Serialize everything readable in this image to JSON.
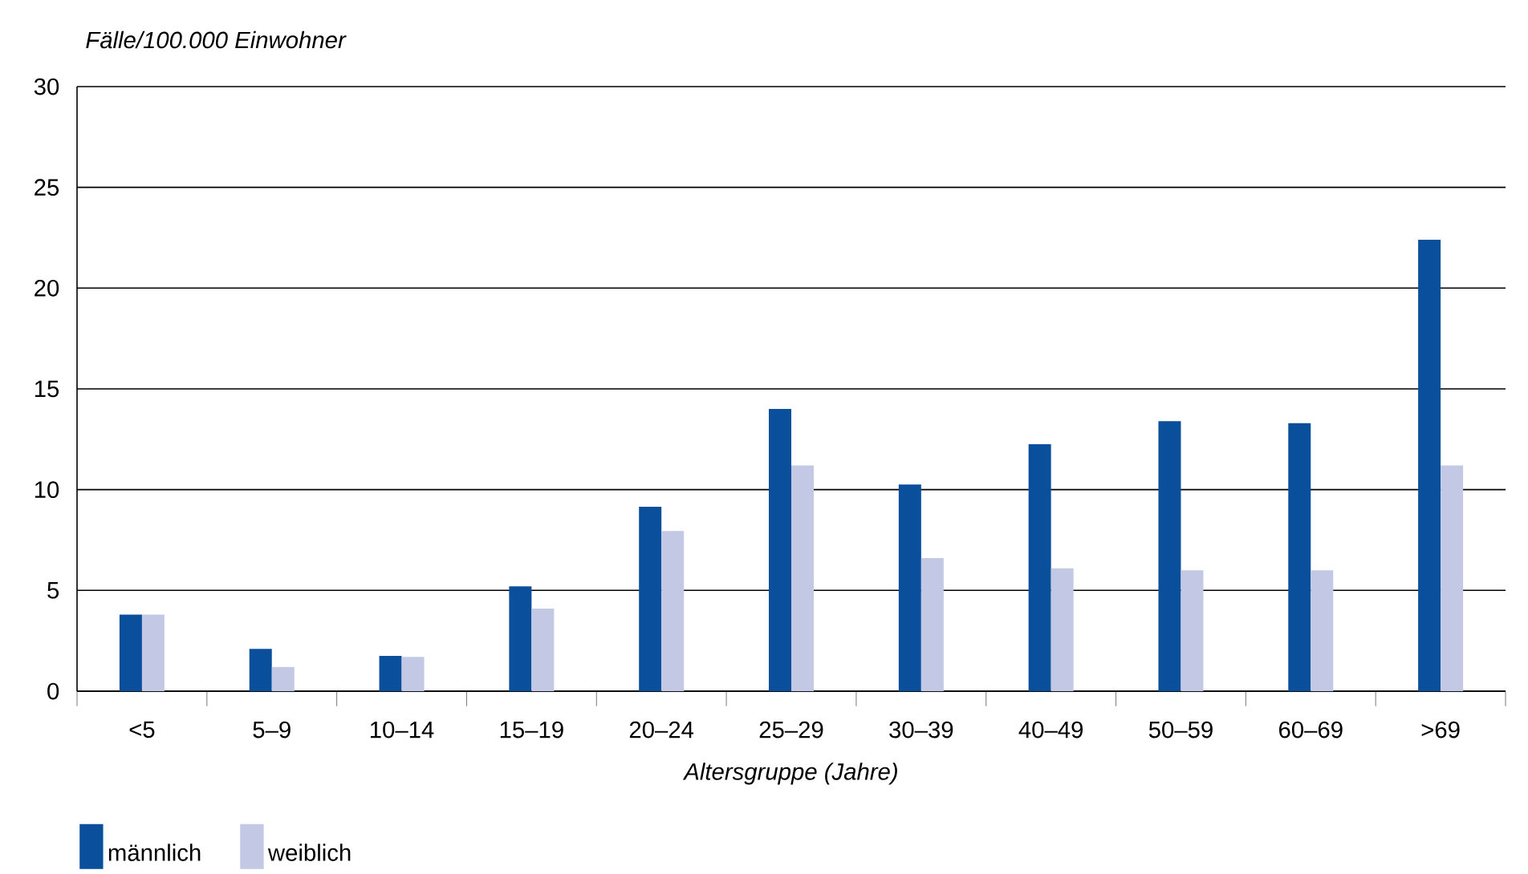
{
  "chart_data": {
    "type": "bar",
    "ylabel": "Fälle/100.000 Einwohner",
    "xlabel": "Altersgruppe (Jahre)",
    "categories": [
      "<5",
      "5–9",
      "10–14",
      "15–19",
      "20–24",
      "25–29",
      "30–39",
      "40–49",
      "50–59",
      "60–69",
      ">69"
    ],
    "series": [
      {
        "name": "männlich",
        "color": "#0a4f9c",
        "values": [
          3.8,
          2.1,
          1.75,
          5.2,
          9.15,
          14.0,
          10.25,
          12.25,
          13.4,
          13.3,
          22.4
        ]
      },
      {
        "name": "weiblich",
        "color": "#c3c8e4",
        "values": [
          3.8,
          1.2,
          1.7,
          4.1,
          7.95,
          11.2,
          6.6,
          6.1,
          6.0,
          6.0,
          11.2
        ]
      }
    ],
    "ylim": [
      0,
      30
    ],
    "yticks": [
      0,
      5,
      10,
      15,
      20,
      25,
      30
    ],
    "grid": "y",
    "legend": "bottom left"
  }
}
